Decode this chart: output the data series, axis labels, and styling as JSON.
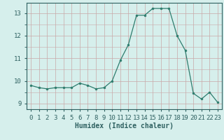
{
  "x": [
    0,
    1,
    2,
    3,
    4,
    5,
    6,
    7,
    8,
    9,
    10,
    11,
    12,
    13,
    14,
    15,
    16,
    17,
    18,
    19,
    20,
    21,
    22,
    23
  ],
  "y": [
    9.8,
    9.7,
    9.65,
    9.7,
    9.7,
    9.7,
    9.9,
    9.8,
    9.65,
    9.7,
    10.0,
    10.9,
    11.6,
    12.9,
    12.9,
    13.2,
    13.2,
    13.2,
    12.0,
    11.35,
    9.45,
    9.2,
    9.5,
    9.05
  ],
  "line_color": "#2e7d6e",
  "marker": "o",
  "marker_size": 2,
  "bg_color": "#d6efec",
  "grid_color_major": "#c9a8a8",
  "grid_color_minor": "#c9a8a8",
  "xlabel": "Humidex (Indice chaleur)",
  "xlim": [
    -0.5,
    23.5
  ],
  "ylim": [
    8.75,
    13.45
  ],
  "yticks": [
    9,
    10,
    11,
    12,
    13
  ],
  "xticks": [
    0,
    1,
    2,
    3,
    4,
    5,
    6,
    7,
    8,
    9,
    10,
    11,
    12,
    13,
    14,
    15,
    16,
    17,
    18,
    19,
    20,
    21,
    22,
    23
  ],
  "tick_color": "#2e6060",
  "axis_color": "#2e6060",
  "xlabel_fontsize": 7,
  "tick_fontsize": 6.5
}
